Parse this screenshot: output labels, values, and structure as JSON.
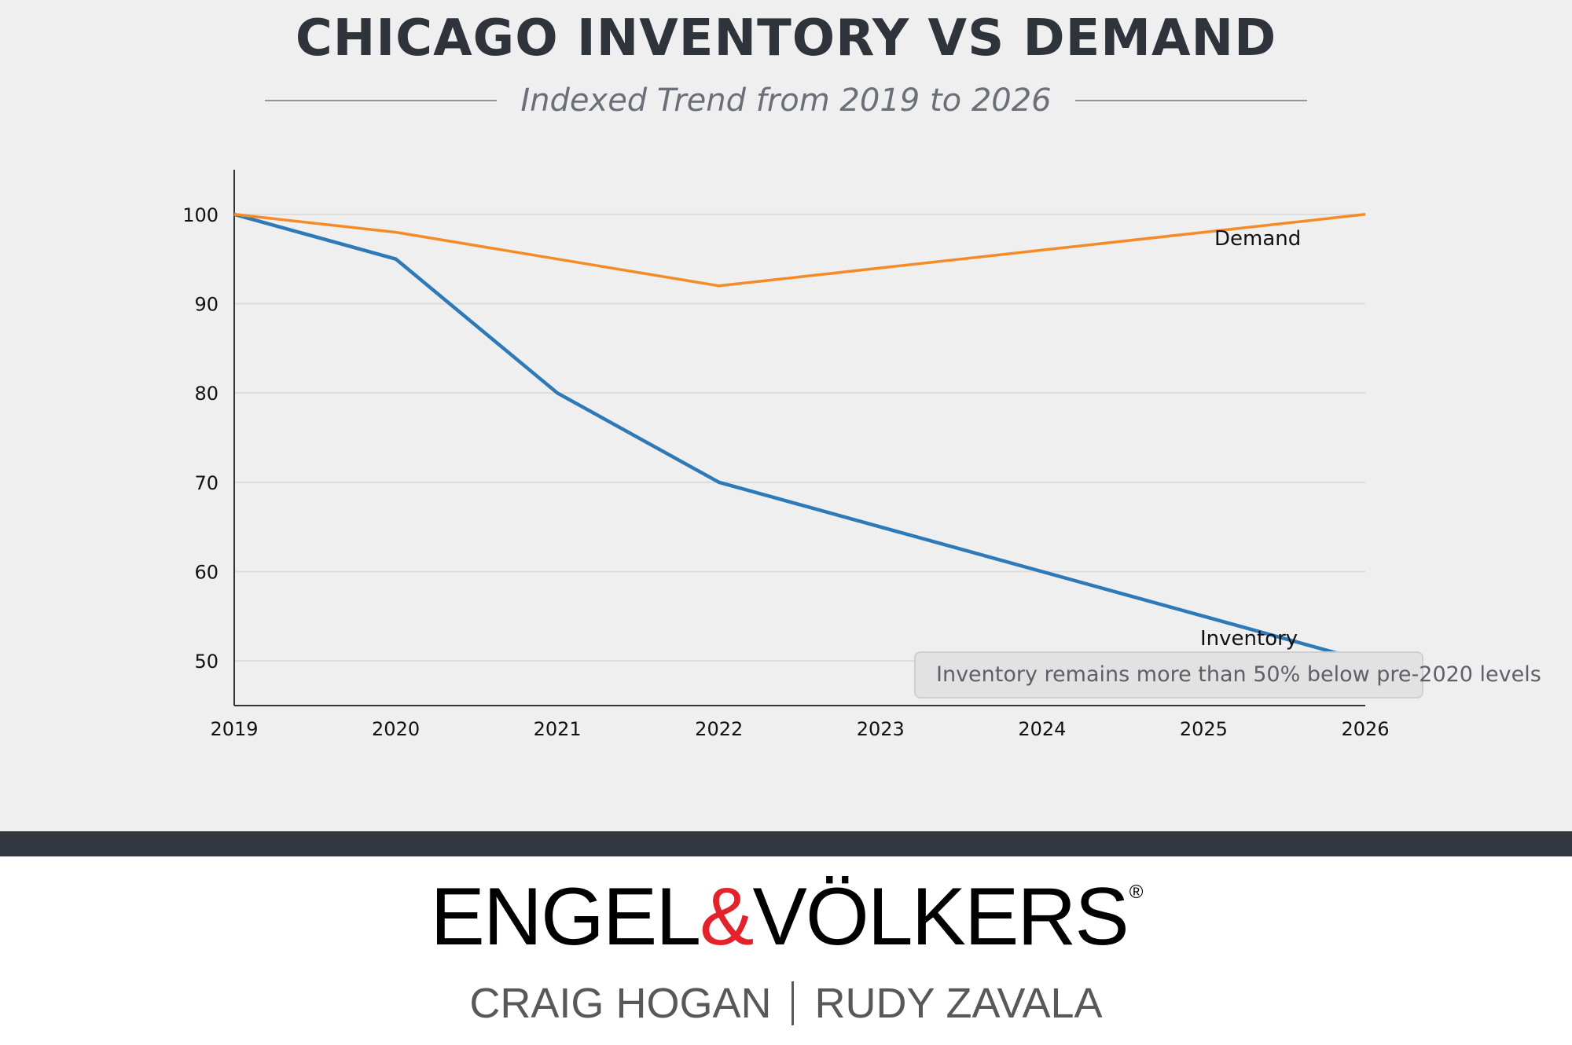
{
  "header": {
    "title": "CHICAGO INVENTORY VS DEMAND",
    "subtitle": "Indexed Trend from 2019 to 2026"
  },
  "chart_data": {
    "type": "line",
    "title": "CHICAGO INVENTORY VS DEMAND",
    "subtitle": "Indexed Trend from 2019 to 2026",
    "x": [
      2019,
      2020,
      2021,
      2022,
      2023,
      2024,
      2025,
      2026
    ],
    "x_tick_labels": [
      "2019",
      "2020",
      "2021",
      "2022",
      "2023",
      "2024",
      "2025",
      "2026"
    ],
    "y_ticks": [
      50,
      60,
      70,
      80,
      90,
      100
    ],
    "y_tick_labels": [
      "50",
      "60",
      "70",
      "80",
      "90",
      "100"
    ],
    "xlim": [
      2019,
      2026
    ],
    "ylim": [
      45,
      105
    ],
    "grid": "horizontal",
    "xlabel": "",
    "ylabel": "",
    "series": [
      {
        "name": "Inventory",
        "color": "#2e79b7",
        "values": [
          100,
          95,
          80,
          70,
          65,
          60,
          55,
          50
        ]
      },
      {
        "name": "Demand",
        "color": "#f48b27",
        "values": [
          100,
          98,
          95,
          92,
          94,
          96,
          98,
          100
        ]
      }
    ],
    "annotation": "Inventory remains more than 50% below pre-2020 levels"
  },
  "footer": {
    "brand_left": "ENGEL",
    "brand_amp": "&",
    "brand_right": "VÖLKERS",
    "brand_reg": "®",
    "agent_1": "CRAIG HOGAN",
    "agent_2": "RUDY ZAVALA"
  },
  "colors": {
    "background": "#efefef",
    "title": "#2f333b",
    "footer_bar": "#333740",
    "brand_accent": "#e3232a"
  }
}
